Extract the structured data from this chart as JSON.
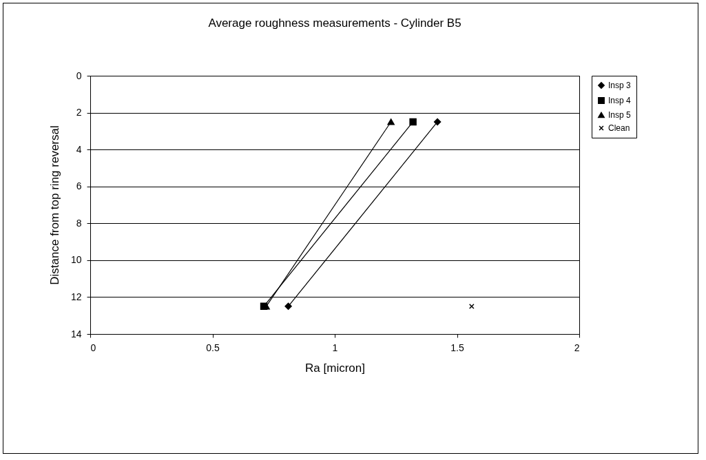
{
  "chart_data": {
    "type": "line",
    "title": "Average roughness measurements - Cylinder B5",
    "xlabel": "Ra [micron]",
    "ylabel": "Distance from top ring reversal",
    "xlim": [
      0,
      2
    ],
    "xticks": [
      0,
      0.5,
      1,
      1.5,
      2
    ],
    "ylim": [
      14,
      0
    ],
    "yticks": [
      0,
      2,
      4,
      6,
      8,
      10,
      12,
      14
    ],
    "grid": "y",
    "legend": "right",
    "series": [
      {
        "name": "Insp 3",
        "color": "#000000",
        "marker": "diamond",
        "x": [
          1.42,
          0.81
        ],
        "values": [
          2.5,
          12.5
        ]
      },
      {
        "name": "Insp 4",
        "color": "#000000",
        "marker": "square",
        "x": [
          1.32,
          0.71
        ],
        "values": [
          2.5,
          12.5
        ]
      },
      {
        "name": "Insp 5",
        "color": "#000000",
        "marker": "triangle",
        "x": [
          1.23,
          0.72
        ],
        "values": [
          2.5,
          12.5
        ]
      },
      {
        "name": "Clean",
        "type": "scatter",
        "color": "#000000",
        "marker": "cross",
        "x": [
          1.56
        ],
        "values": [
          12.5
        ]
      }
    ]
  }
}
